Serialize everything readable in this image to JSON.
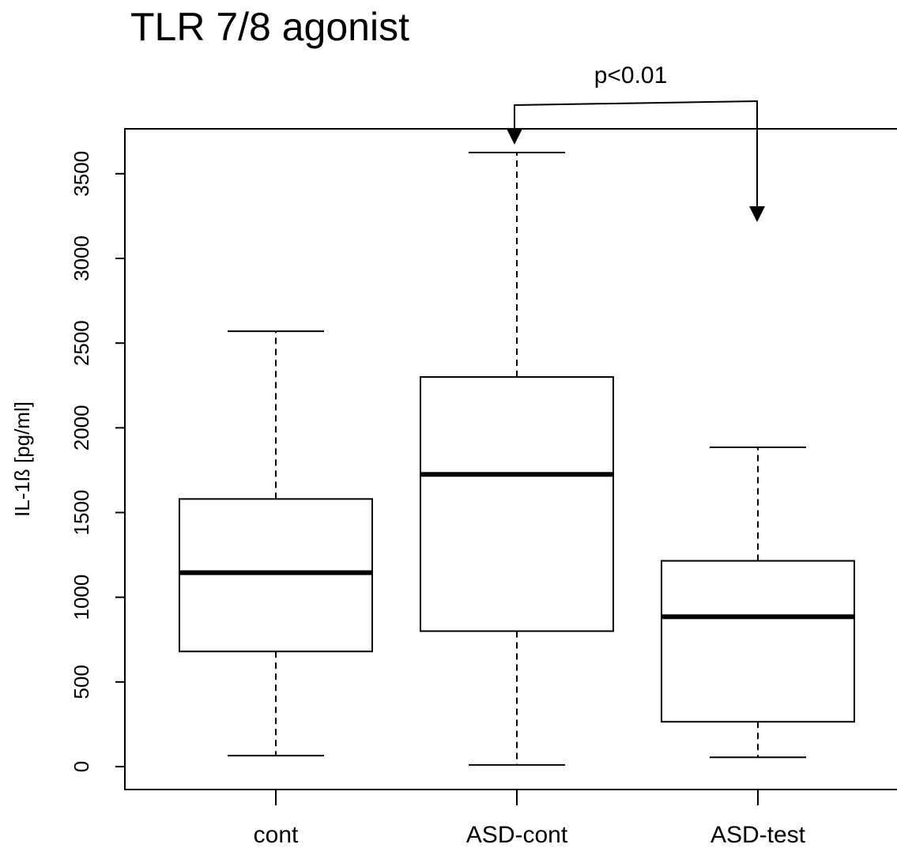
{
  "chart_data": {
    "type": "box",
    "title": "TLR 7/8 agonist",
    "ylabel": "IL-1ß [pg/ml]",
    "annotation": "p<0.01",
    "categories": [
      "cont",
      "ASD-cont",
      "ASD-test"
    ],
    "boxes": [
      {
        "whisker_low": 65,
        "q1": 680,
        "median": 1145,
        "q3": 1580,
        "whisker_high": 2570
      },
      {
        "whisker_low": 10,
        "q1": 800,
        "median": 1725,
        "q3": 2300,
        "whisker_high": 3625
      },
      {
        "whisker_low": 55,
        "q1": 265,
        "median": 885,
        "q3": 1215,
        "whisker_high": 1885
      }
    ],
    "color": "#000000",
    "ylim": [
      -135,
      3765
    ],
    "yticks": [
      0,
      500,
      1000,
      1500,
      2000,
      2500,
      3000,
      3500
    ]
  }
}
